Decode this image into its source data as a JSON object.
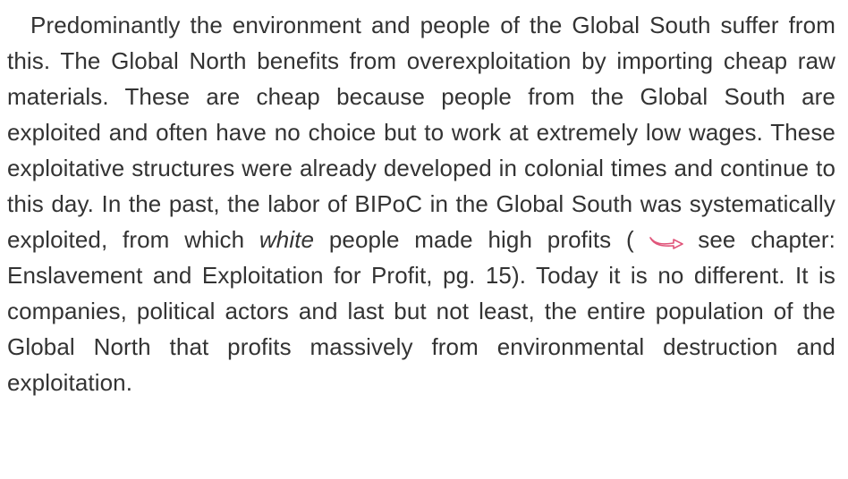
{
  "paragraph": {
    "segments": [
      "Predominantly the environment and people of the Global South suffer from this. The Global North benefits from overexploitation by importing cheap raw materials. These are cheap because people from the Global South are exploited and often have no choice but to work at extremely low wages. These exploitative structures were already developed in colonial times and continue to this day. In the past, the labor of BIPoC in the Global South was systematically exploited, from which ",
      "white",
      " people made high profits ( ",
      " see chapter: Enslavement and Exploitation for Profit, pg. 15). Today it is no different. It is companies, political actors and last but not least, the entire population of the Global North that profits massively from environmental destruction and exploitation."
    ]
  }
}
